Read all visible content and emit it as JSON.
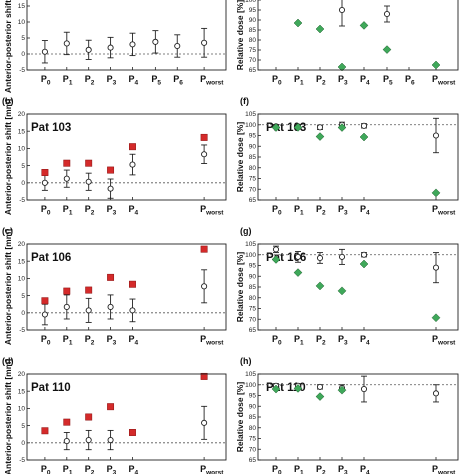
{
  "colors": {
    "shift_marker": "#d42a2a",
    "dose_marker": "#3fa85a",
    "error_bar": "#222222",
    "reference_line": "#555555"
  },
  "chart_data": [
    {
      "type": "scatter",
      "panel_label": "",
      "title": "",
      "ylabel": "Anterior-posterior shift [mm]",
      "ylim": [
        -5,
        20
      ],
      "yticks": [
        -5,
        0,
        5,
        10,
        15,
        20
      ],
      "reference_line": 0,
      "categories": [
        {
          "base": "P",
          "sub": "0"
        },
        {
          "base": "P",
          "sub": "1"
        },
        {
          "base": "P",
          "sub": "2"
        },
        {
          "base": "P",
          "sub": "3"
        },
        {
          "base": "P",
          "sub": "4"
        },
        {
          "base": "P",
          "sub": "5"
        },
        {
          "base": "P",
          "sub": "6"
        },
        {
          "base": "P",
          "sub": "worst"
        }
      ],
      "series": [
        {
          "marker": "circle-errorbar",
          "mean": [
            0.7,
            3.3,
            1.3,
            2.0,
            3.0,
            3.8,
            2.5,
            3.5
          ],
          "error": [
            3.5,
            3.5,
            3.0,
            3.2,
            3.5,
            3.5,
            3.5,
            4.5
          ]
        }
      ]
    },
    {
      "type": "scatter",
      "panel_label": "(b)",
      "title": "Pat 103",
      "ylabel": "Anterior-posterior shift [mm]",
      "ylim": [
        -5,
        20
      ],
      "yticks": [
        -5,
        0,
        5,
        10,
        15,
        20
      ],
      "reference_line": 0,
      "categories": [
        {
          "base": "P",
          "sub": "0"
        },
        {
          "base": "P",
          "sub": "1"
        },
        {
          "base": "P",
          "sub": "2"
        },
        {
          "base": "P",
          "sub": "3"
        },
        {
          "base": "P",
          "sub": "4"
        },
        {
          "base": "P",
          "sub": "worst"
        }
      ],
      "series": [
        {
          "marker": "circle-errorbar",
          "mean": [
            0.0,
            1.2,
            0.3,
            -1.7,
            5.3,
            8.3
          ],
          "error": [
            2.2,
            2.5,
            2.5,
            2.8,
            3.0,
            2.7
          ]
        },
        {
          "marker": "square",
          "values": [
            3.0,
            5.7,
            5.7,
            3.7,
            10.5,
            13.2
          ]
        }
      ]
    },
    {
      "type": "scatter",
      "panel_label": "(c)",
      "title": "Pat 106",
      "ylabel": "Anterior-posterior shift [mm]",
      "ylim": [
        -5,
        20
      ],
      "yticks": [
        -5,
        0,
        5,
        10,
        15,
        20
      ],
      "reference_line": 0,
      "categories": [
        {
          "base": "P",
          "sub": "0"
        },
        {
          "base": "P",
          "sub": "1"
        },
        {
          "base": "P",
          "sub": "2"
        },
        {
          "base": "P",
          "sub": "3"
        },
        {
          "base": "P",
          "sub": "4"
        },
        {
          "base": "P",
          "sub": "worst"
        }
      ],
      "series": [
        {
          "marker": "circle-errorbar",
          "mean": [
            -0.5,
            1.7,
            0.7,
            1.7,
            0.7,
            7.7
          ],
          "error": [
            3.0,
            3.5,
            3.5,
            3.5,
            3.3,
            4.8
          ]
        },
        {
          "marker": "square",
          "values": [
            3.5,
            6.3,
            6.6,
            10.3,
            8.3,
            18.5
          ]
        }
      ]
    },
    {
      "type": "scatter",
      "panel_label": "(d)",
      "title": "Pat 110",
      "ylabel": "Anterior-posterior shift [mm]",
      "ylim": [
        -5,
        20
      ],
      "yticks": [
        -5,
        0,
        5,
        10,
        15,
        20
      ],
      "reference_line": 0,
      "categories": [
        {
          "base": "P",
          "sub": "0"
        },
        {
          "base": "P",
          "sub": "1"
        },
        {
          "base": "P",
          "sub": "2"
        },
        {
          "base": "P",
          "sub": "3"
        },
        {
          "base": "P",
          "sub": "4"
        },
        {
          "base": "P",
          "sub": "worst"
        }
      ],
      "series": [
        {
          "marker": "circle-errorbar",
          "mean": [
            null,
            0.5,
            0.8,
            0.8,
            null,
            5.8
          ],
          "error": [
            null,
            2.5,
            2.8,
            2.8,
            null,
            4.8
          ]
        },
        {
          "marker": "square",
          "values": [
            3.5,
            6.0,
            7.5,
            10.5,
            3.0,
            19.3
          ]
        }
      ]
    },
    {
      "type": "scatter",
      "panel_label": "",
      "title": "",
      "ylabel": "Relative dose [%]",
      "ylim": [
        65,
        105
      ],
      "yticks": [
        65,
        70,
        75,
        80,
        85,
        90,
        95,
        100,
        105
      ],
      "reference_line": null,
      "categories": [
        {
          "base": "P",
          "sub": "0"
        },
        {
          "base": "P",
          "sub": "1"
        },
        {
          "base": "P",
          "sub": "2"
        },
        {
          "base": "P",
          "sub": "3"
        },
        {
          "base": "P",
          "sub": "4"
        },
        {
          "base": "P",
          "sub": "5"
        },
        {
          "base": "P",
          "sub": "6"
        },
        {
          "base": "P",
          "sub": "worst"
        }
      ],
      "series": [
        {
          "marker": "circle-errorbar",
          "mean": [
            null,
            null,
            null,
            95.0,
            null,
            93.0,
            null,
            null
          ],
          "error": [
            null,
            null,
            null,
            8.0,
            null,
            4.0,
            null,
            null
          ]
        },
        {
          "marker": "diamond",
          "values": [
            null,
            88.5,
            85.5,
            66.5,
            87.3,
            75.2,
            null,
            67.5
          ]
        }
      ]
    },
    {
      "type": "scatter",
      "panel_label": "(f)",
      "title": "Pat 103",
      "ylabel": "Relative dose [%]",
      "ylim": [
        65,
        105
      ],
      "yticks": [
        65,
        70,
        75,
        80,
        85,
        90,
        95,
        100,
        105
      ],
      "reference_line": 100,
      "categories": [
        {
          "base": "P",
          "sub": "0"
        },
        {
          "base": "P",
          "sub": "1"
        },
        {
          "base": "P",
          "sub": "2"
        },
        {
          "base": "P",
          "sub": "3"
        },
        {
          "base": "P",
          "sub": "4"
        },
        {
          "base": "P",
          "sub": "worst"
        }
      ],
      "series": [
        {
          "marker": "circle-errorbar",
          "mean": [
            99.3,
            99.3,
            98.8,
            100.0,
            99.5,
            95.0
          ],
          "error": [
            0.8,
            0.8,
            1.0,
            1.2,
            1.0,
            8.0
          ]
        },
        {
          "marker": "diamond",
          "values": [
            98.7,
            98.8,
            94.5,
            98.7,
            94.3,
            68.3
          ]
        }
      ]
    },
    {
      "type": "scatter",
      "panel_label": "(g)",
      "title": "Pat 106",
      "ylabel": "Relative dose [%]",
      "ylim": [
        65,
        105
      ],
      "yticks": [
        65,
        70,
        75,
        80,
        85,
        90,
        95,
        100,
        105
      ],
      "reference_line": 100,
      "categories": [
        {
          "base": "P",
          "sub": "0"
        },
        {
          "base": "P",
          "sub": "1"
        },
        {
          "base": "P",
          "sub": "2"
        },
        {
          "base": "P",
          "sub": "3"
        },
        {
          "base": "P",
          "sub": "4"
        },
        {
          "base": "P",
          "sub": "worst"
        }
      ],
      "series": [
        {
          "marker": "circle-errorbar",
          "mean": [
            102.5,
            99.0,
            98.5,
            99.0,
            100.0,
            94.0
          ],
          "error": [
            1.5,
            2.5,
            2.5,
            3.5,
            1.0,
            7.0
          ]
        },
        {
          "marker": "diamond",
          "values": [
            97.8,
            91.7,
            85.5,
            83.2,
            95.7,
            70.7
          ]
        }
      ]
    },
    {
      "type": "scatter",
      "panel_label": "(h)",
      "title": "Pat 110",
      "ylabel": "Relative dose [%]",
      "ylim": [
        65,
        105
      ],
      "yticks": [
        65,
        70,
        75,
        80,
        85,
        90,
        95,
        100,
        105
      ],
      "reference_line": 100,
      "categories": [
        {
          "base": "P",
          "sub": "0"
        },
        {
          "base": "P",
          "sub": "1"
        },
        {
          "base": "P",
          "sub": "2"
        },
        {
          "base": "P",
          "sub": "3"
        },
        {
          "base": "P",
          "sub": "4"
        },
        {
          "base": "P",
          "sub": "worst"
        }
      ],
      "series": [
        {
          "marker": "circle-errorbar",
          "mean": [
            99.5,
            99.5,
            99.0,
            98.5,
            98.0,
            96.0
          ],
          "error": [
            1.0,
            1.0,
            1.0,
            1.5,
            6.0,
            4.0
          ]
        },
        {
          "marker": "diamond",
          "values": [
            98.0,
            98.3,
            94.5,
            97.5,
            null,
            null
          ]
        }
      ]
    }
  ]
}
